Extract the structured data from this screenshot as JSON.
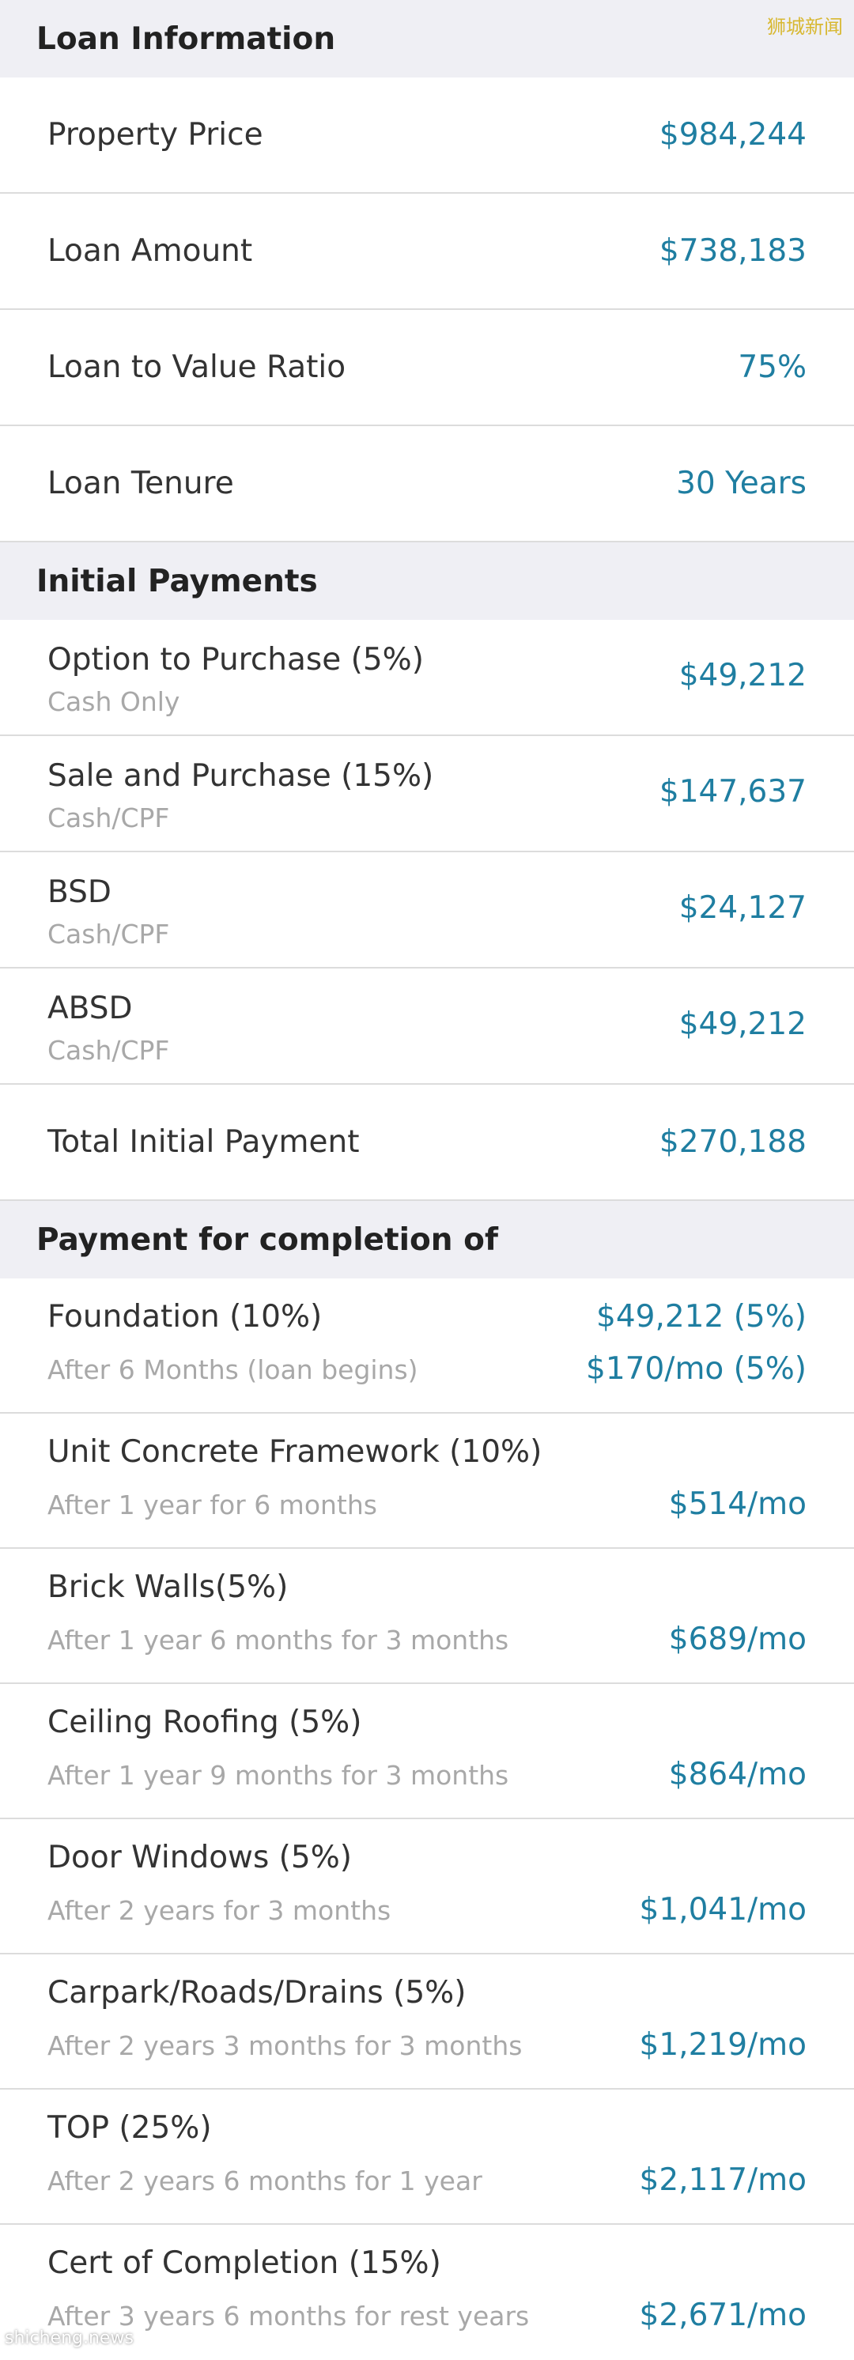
{
  "watermarks": {
    "top": "狮城新闻",
    "bottom": "shicheng.news"
  },
  "loan_info": {
    "header": "Loan Information",
    "rows": [
      {
        "label": "Property Price",
        "value": "$984,244"
      },
      {
        "label": "Loan Amount",
        "value": "$738,183"
      },
      {
        "label": "Loan to Value Ratio",
        "value": "75%"
      },
      {
        "label": "Loan Tenure",
        "value": "30 Years"
      }
    ]
  },
  "initial_payments": {
    "header": "Initial Payments",
    "rows": [
      {
        "label": "Option to Purchase (5%)",
        "sublabel": "Cash Only",
        "value": "$49,212"
      },
      {
        "label": "Sale and Purchase (15%)",
        "sublabel": "Cash/CPF",
        "value": "$147,637"
      },
      {
        "label": "BSD",
        "sublabel": "Cash/CPF",
        "value": "$24,127"
      },
      {
        "label": "ABSD",
        "sublabel": "Cash/CPF",
        "value": "$49,212"
      }
    ],
    "total": {
      "label": "Total Initial Payment",
      "value": "$270,188"
    }
  },
  "completion": {
    "header": "Payment for completion of",
    "rows": [
      {
        "label": "Foundation (10%)",
        "sublabel": "After 6 Months (loan begins)",
        "value1": "$49,212 (5%)",
        "value2": "$170/mo (5%)"
      },
      {
        "label": "Unit Concrete Framework (10%)",
        "sublabel": "After 1 year for 6 months",
        "value1": "",
        "value2": "$514/mo"
      },
      {
        "label": "Brick Walls(5%)",
        "sublabel": "After 1 year 6 months for 3 months",
        "value1": "",
        "value2": "$689/mo"
      },
      {
        "label": "Ceiling Roofing (5%)",
        "sublabel": "After 1 year 9 months for 3 months",
        "value1": "",
        "value2": "$864/mo"
      },
      {
        "label": "Door Windows (5%)",
        "sublabel": "After 2 years for 3 months",
        "value1": "",
        "value2": "$1,041/mo"
      },
      {
        "label": "Carpark/Roads/Drains (5%)",
        "sublabel": "After 2 years 3 months for 3 months",
        "value1": "",
        "value2": "$1,219/mo"
      },
      {
        "label": "TOP (25%)",
        "sublabel": "After 2 years 6 months for 1 year",
        "value1": "",
        "value2": "$2,117/mo"
      },
      {
        "label": "Cert of Completion (15%)",
        "sublabel": "After 3 years 6 months for rest years",
        "value1": "",
        "value2": "$2,671/mo"
      }
    ]
  },
  "colors": {
    "value_text": "#1f7ea1",
    "header_bg": "#efeff4",
    "sublabel_text": "#a8a8a8"
  }
}
